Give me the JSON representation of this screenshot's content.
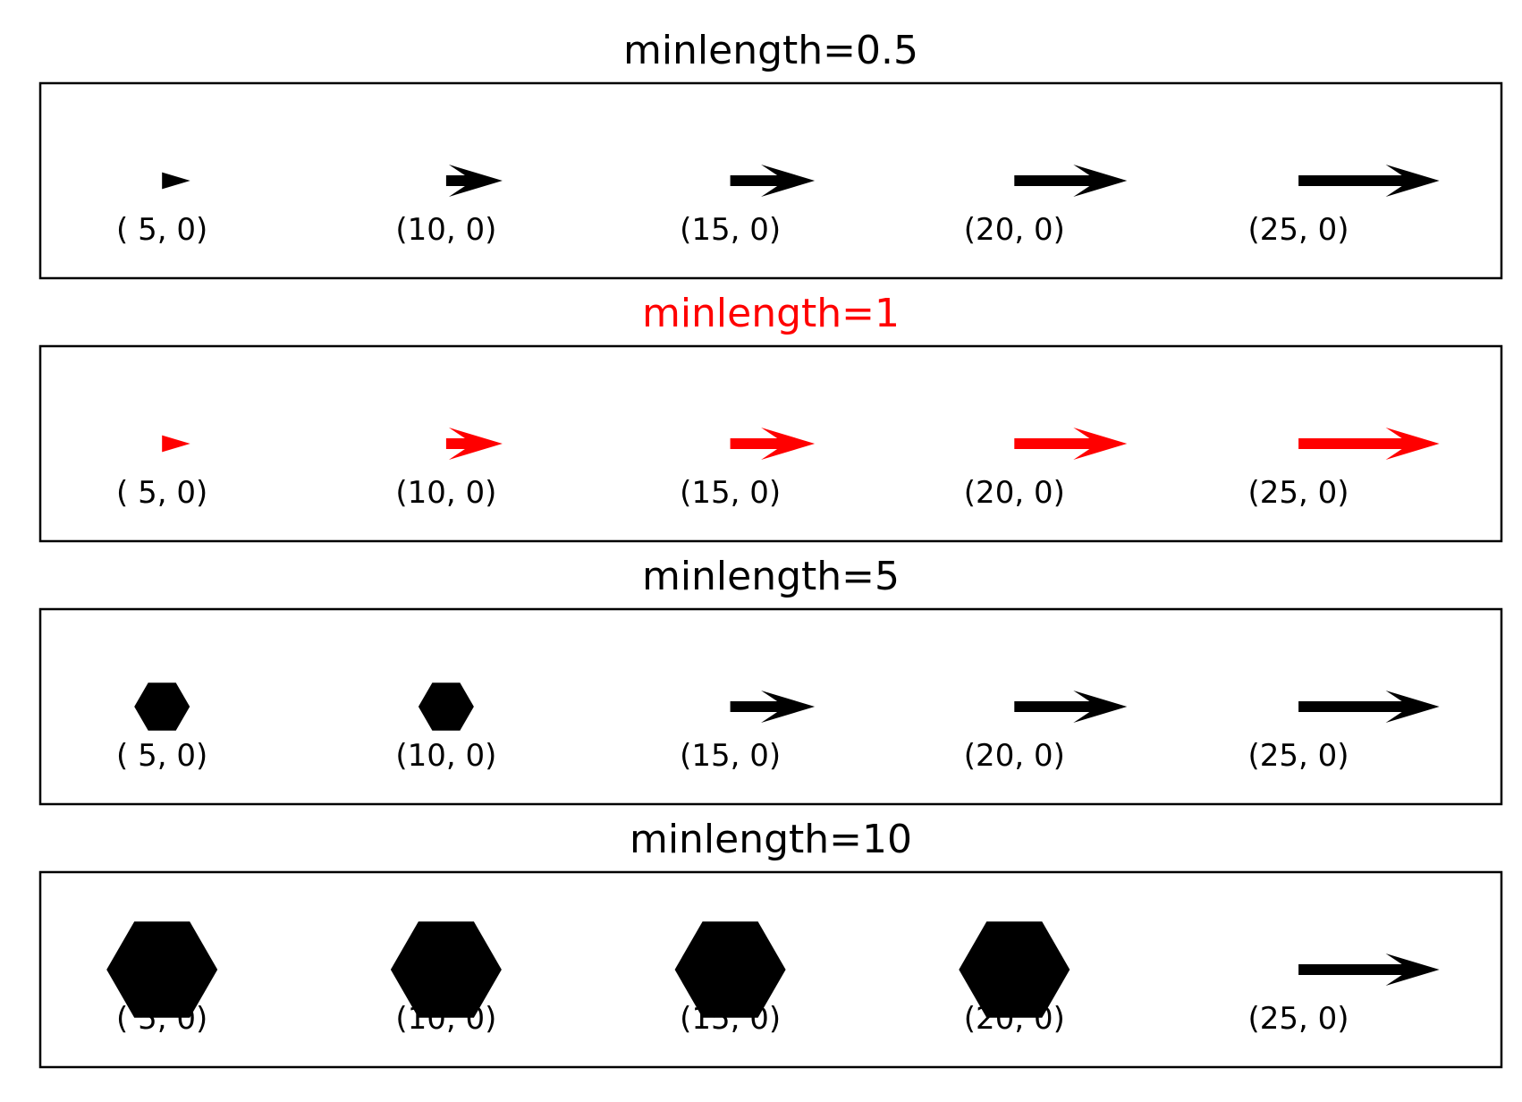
{
  "chart_data": [
    {
      "type": "quiver",
      "title": "minlength=0.5",
      "title_color": "#000000",
      "arrow_color": "#000000",
      "minlength": 0.5,
      "ylim": [
        -1,
        1
      ],
      "xlim": [
        0,
        36
      ],
      "vectors": [
        {
          "x": 3.0,
          "y": 0,
          "u": 5,
          "v": 0,
          "label": "( 5,  0)",
          "marker": "arrow"
        },
        {
          "x": 10.0,
          "y": 0,
          "u": 10,
          "v": 0,
          "label": "(10,  0)",
          "marker": "arrow"
        },
        {
          "x": 17.0,
          "y": 0,
          "u": 15,
          "v": 0,
          "label": "(15,  0)",
          "marker": "arrow"
        },
        {
          "x": 24.0,
          "y": 0,
          "u": 20,
          "v": 0,
          "label": "(20,  0)",
          "marker": "arrow"
        },
        {
          "x": 31.0,
          "y": 0,
          "u": 25,
          "v": 0,
          "label": "(25,  0)",
          "marker": "arrow"
        }
      ]
    },
    {
      "type": "quiver",
      "title": "minlength=1",
      "title_color": "#ff0000",
      "arrow_color": "#ff0000",
      "minlength": 1,
      "ylim": [
        -1,
        1
      ],
      "xlim": [
        0,
        36
      ],
      "vectors": [
        {
          "x": 3.0,
          "y": 0,
          "u": 5,
          "v": 0,
          "label": "( 5,  0)",
          "marker": "arrow"
        },
        {
          "x": 10.0,
          "y": 0,
          "u": 10,
          "v": 0,
          "label": "(10,  0)",
          "marker": "arrow"
        },
        {
          "x": 17.0,
          "y": 0,
          "u": 15,
          "v": 0,
          "label": "(15,  0)",
          "marker": "arrow"
        },
        {
          "x": 24.0,
          "y": 0,
          "u": 20,
          "v": 0,
          "label": "(20,  0)",
          "marker": "arrow"
        },
        {
          "x": 31.0,
          "y": 0,
          "u": 25,
          "v": 0,
          "label": "(25,  0)",
          "marker": "arrow"
        }
      ]
    },
    {
      "type": "quiver",
      "title": "minlength=5",
      "title_color": "#000000",
      "arrow_color": "#000000",
      "minlength": 5,
      "ylim": [
        -1,
        1
      ],
      "xlim": [
        0,
        36
      ],
      "vectors": [
        {
          "x": 3.0,
          "y": 0,
          "u": 5,
          "v": 0,
          "label": "( 5,  0)",
          "marker": "hexagon"
        },
        {
          "x": 10.0,
          "y": 0,
          "u": 10,
          "v": 0,
          "label": "(10,  0)",
          "marker": "hexagon"
        },
        {
          "x": 17.0,
          "y": 0,
          "u": 15,
          "v": 0,
          "label": "(15,  0)",
          "marker": "arrow"
        },
        {
          "x": 24.0,
          "y": 0,
          "u": 20,
          "v": 0,
          "label": "(20,  0)",
          "marker": "arrow"
        },
        {
          "x": 31.0,
          "y": 0,
          "u": 25,
          "v": 0,
          "label": "(25,  0)",
          "marker": "arrow"
        }
      ]
    },
    {
      "type": "quiver",
      "title": "minlength=10",
      "title_color": "#000000",
      "arrow_color": "#000000",
      "minlength": 10,
      "ylim": [
        -1,
        1
      ],
      "xlim": [
        0,
        36
      ],
      "vectors": [
        {
          "x": 3.0,
          "y": 0,
          "u": 5,
          "v": 0,
          "label": "( 5,  0)",
          "marker": "hexagon"
        },
        {
          "x": 10.0,
          "y": 0,
          "u": 10,
          "v": 0,
          "label": "(10,  0)",
          "marker": "hexagon"
        },
        {
          "x": 17.0,
          "y": 0,
          "u": 15,
          "v": 0,
          "label": "(15,  0)",
          "marker": "hexagon"
        },
        {
          "x": 24.0,
          "y": 0,
          "u": 20,
          "v": 0,
          "label": "(20,  0)",
          "marker": "hexagon"
        },
        {
          "x": 31.0,
          "y": 0,
          "u": 25,
          "v": 0,
          "label": "(25,  0)",
          "marker": "arrow"
        }
      ]
    }
  ]
}
